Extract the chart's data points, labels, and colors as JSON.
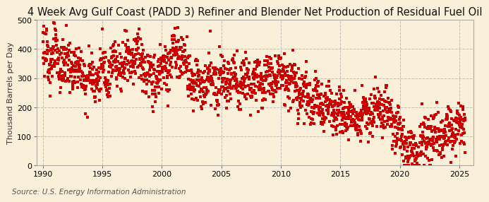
{
  "title": "4 Week Avg Gulf Coast (PADD 3) Refiner and Blender Net Production of Residual Fuel Oil",
  "ylabel": "Thousand Barrels per Day",
  "source": "Source: U.S. Energy Information Administration",
  "background_color": "#faefd8",
  "plot_bg_color": "#faefd8",
  "line_color": "#cc0000",
  "ylim": [
    0,
    500
  ],
  "yticks": [
    0,
    100,
    200,
    300,
    400,
    500
  ],
  "xlim_start": 1989.5,
  "xlim_end": 2026.2,
  "xticks": [
    1990,
    1995,
    2000,
    2005,
    2010,
    2015,
    2020,
    2025
  ],
  "title_fontsize": 10.5,
  "ylabel_fontsize": 8,
  "source_fontsize": 7.5,
  "tick_fontsize": 8
}
